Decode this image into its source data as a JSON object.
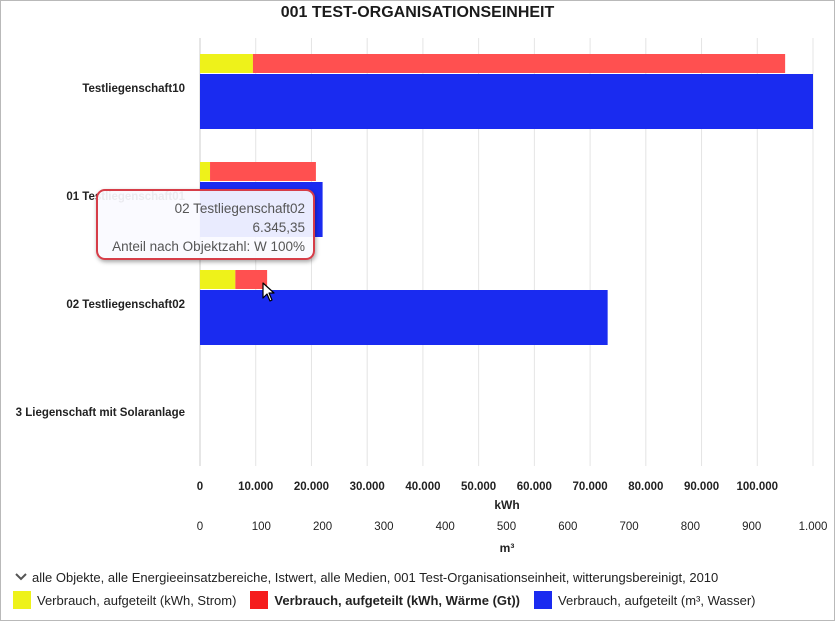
{
  "chart_data": {
    "type": "bar",
    "orientation": "horizontal",
    "stacked_top_bar": true,
    "title": "001 TEST-ORGANISATIONSEINHEIT",
    "categories": [
      "Testliegenschaft10",
      "01 Testliegenschaft01",
      "02 Testliegenschaft02",
      "3 Liegenschaft mit Solaranlage"
    ],
    "series": [
      {
        "name": "Verbrauch, aufgeteilt (kWh, Strom)",
        "axis": "kWh",
        "color": "#eef21a",
        "values": [
          9500,
          1800,
          6345,
          0
        ]
      },
      {
        "name": "Verbrauch, aufgeteilt (kWh, Wärme (Gt))",
        "axis": "kWh",
        "color": "#ff5050",
        "values": [
          95500,
          19000,
          5700,
          0
        ]
      },
      {
        "name": "Verbrauch, aufgeteilt (m³, Wasser)",
        "axis": "m3",
        "color": "#1a2bf0",
        "values": [
          1000,
          200,
          665,
          0
        ]
      }
    ],
    "axes": {
      "kwh": {
        "label": "kWh",
        "min": 0,
        "max": 110000,
        "ticks": [
          0,
          10000,
          20000,
          30000,
          40000,
          50000,
          60000,
          70000,
          80000,
          90000,
          100000
        ],
        "tick_labels": [
          "0",
          "10.000",
          "20.000",
          "30.000",
          "40.000",
          "50.000",
          "60.000",
          "70.000",
          "80.000",
          "90.000",
          "100.000"
        ]
      },
      "m3": {
        "label": "m³",
        "min": 0,
        "max": 1000,
        "ticks": [
          0,
          100,
          200,
          300,
          400,
          500,
          600,
          700,
          800,
          900,
          1000
        ],
        "tick_labels": [
          "0",
          "100",
          "200",
          "300",
          "400",
          "500",
          "600",
          "700",
          "800",
          "900",
          "1.000"
        ]
      }
    },
    "grid": true,
    "legend_position": "bottom"
  },
  "footer": {
    "text": "alle Objekte, alle Energieeinsatzbereiche, Istwert, alle Medien, 001 Test-Organisationseinheit, witterungsbereinigt, 2010"
  },
  "tooltip": {
    "line1": "02 Testliegenschaft02",
    "line2": "6.345,35",
    "line3": "Anteil nach Objektzahl: W 100%"
  },
  "colors": {
    "strom": "#eef21a",
    "waerme": "#ff5050",
    "wasser": "#1a2bf0",
    "tooltip_border": "#d63d48"
  }
}
